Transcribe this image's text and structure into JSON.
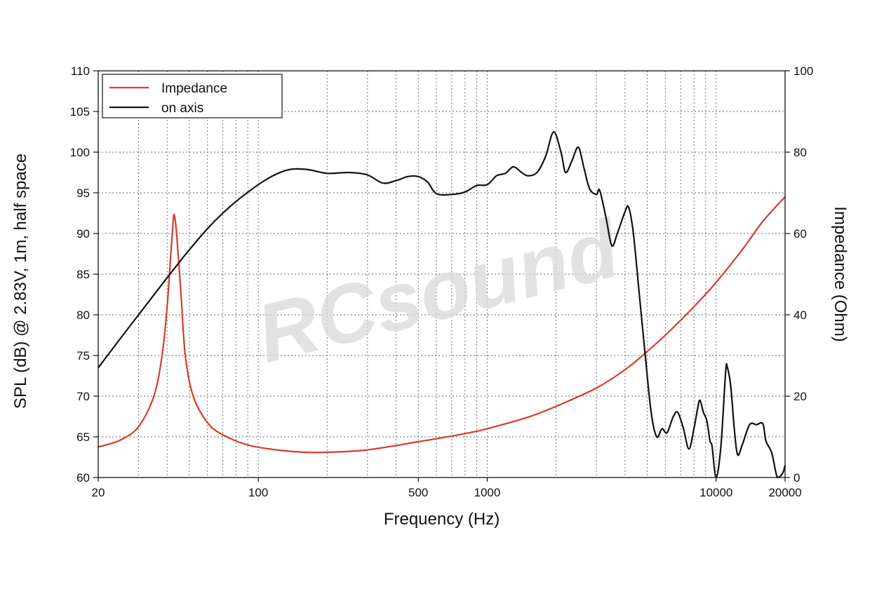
{
  "chart_data": {
    "type": "line",
    "xlabel": "Frequency (Hz)",
    "ylabel_left": "SPL (dB) @ 2.83V, 1m, half space",
    "ylabel_right": "Impedance (Ohm)",
    "x_scale": "log",
    "xlim": [
      20,
      20000
    ],
    "ylim_left": [
      60,
      110
    ],
    "ylim_right": [
      0,
      100
    ],
    "x_ticks": [
      20,
      100,
      500,
      1000,
      10000,
      20000
    ],
    "y_ticks_left": [
      60,
      65,
      70,
      75,
      80,
      85,
      90,
      95,
      100,
      105,
      110
    ],
    "y_ticks_right": [
      0,
      20,
      40,
      60,
      80,
      100
    ],
    "grid": true,
    "legend_position": "top-left",
    "watermark": "RCsound",
    "series": [
      {
        "name": "Impedance",
        "axis": "right",
        "color": "#d93a2b",
        "points": [
          [
            20,
            7.5
          ],
          [
            25,
            9.2
          ],
          [
            30,
            12.5
          ],
          [
            35,
            20
          ],
          [
            38,
            30
          ],
          [
            40,
            42
          ],
          [
            41.5,
            55
          ],
          [
            42.5,
            63
          ],
          [
            43,
            64.5
          ],
          [
            44,
            60
          ],
          [
            46,
            45
          ],
          [
            48,
            30
          ],
          [
            52,
            20
          ],
          [
            60,
            13.5
          ],
          [
            70,
            10.5
          ],
          [
            90,
            8
          ],
          [
            120,
            6.8
          ],
          [
            160,
            6.2
          ],
          [
            200,
            6.2
          ],
          [
            300,
            6.8
          ],
          [
            500,
            8.8
          ],
          [
            800,
            10.8
          ],
          [
            1000,
            12
          ],
          [
            1500,
            14.8
          ],
          [
            2000,
            17.5
          ],
          [
            3000,
            22
          ],
          [
            4000,
            26.5
          ],
          [
            5000,
            31
          ],
          [
            6000,
            35
          ],
          [
            8000,
            42
          ],
          [
            10000,
            48
          ],
          [
            13000,
            56
          ],
          [
            16000,
            63
          ],
          [
            20000,
            69
          ]
        ]
      },
      {
        "name": "on axis",
        "axis": "left",
        "color": "#111111",
        "points": [
          [
            20,
            73.5
          ],
          [
            30,
            80
          ],
          [
            50,
            88
          ],
          [
            70,
            92.5
          ],
          [
            100,
            96
          ],
          [
            130,
            97.7
          ],
          [
            160,
            97.9
          ],
          [
            200,
            97.4
          ],
          [
            250,
            97.5
          ],
          [
            300,
            97.2
          ],
          [
            350,
            96.2
          ],
          [
            400,
            96.5
          ],
          [
            450,
            97
          ],
          [
            500,
            97
          ],
          [
            550,
            96.3
          ],
          [
            600,
            94.9
          ],
          [
            700,
            94.8
          ],
          [
            800,
            95.1
          ],
          [
            900,
            95.9
          ],
          [
            1000,
            96
          ],
          [
            1100,
            97.1
          ],
          [
            1200,
            97.4
          ],
          [
            1300,
            98.2
          ],
          [
            1400,
            97.6
          ],
          [
            1500,
            97.1
          ],
          [
            1650,
            97.5
          ],
          [
            1800,
            99.5
          ],
          [
            1950,
            102.5
          ],
          [
            2100,
            100
          ],
          [
            2200,
            97.5
          ],
          [
            2350,
            99
          ],
          [
            2500,
            100.6
          ],
          [
            2650,
            98
          ],
          [
            2800,
            95.5
          ],
          [
            3000,
            94.8
          ],
          [
            3100,
            95.3
          ],
          [
            3300,
            92
          ],
          [
            3500,
            88.5
          ],
          [
            3700,
            90
          ],
          [
            4000,
            92.7
          ],
          [
            4150,
            93.2
          ],
          [
            4350,
            90
          ],
          [
            4600,
            83
          ],
          [
            4900,
            75
          ],
          [
            5200,
            68
          ],
          [
            5500,
            65
          ],
          [
            5800,
            66
          ],
          [
            6100,
            65.5
          ],
          [
            6500,
            67.5
          ],
          [
            6800,
            68
          ],
          [
            7200,
            66
          ],
          [
            7600,
            63.5
          ],
          [
            8000,
            66
          ],
          [
            8300,
            68.5
          ],
          [
            8500,
            69.5
          ],
          [
            8800,
            68
          ],
          [
            9100,
            67
          ],
          [
            9400,
            64.5
          ],
          [
            9600,
            63.8
          ],
          [
            10000,
            58
          ],
          [
            10500,
            64
          ],
          [
            11000,
            73
          ],
          [
            11200,
            73.5
          ],
          [
            11600,
            71
          ],
          [
            12000,
            66
          ],
          [
            12400,
            62.8
          ],
          [
            13000,
            64
          ],
          [
            14000,
            66.5
          ],
          [
            15000,
            66.5
          ],
          [
            16000,
            66.6
          ],
          [
            16500,
            64.5
          ],
          [
            17500,
            63
          ],
          [
            18500,
            58.5
          ],
          [
            19500,
            60.5
          ],
          [
            20000,
            61.5
          ]
        ]
      }
    ]
  }
}
